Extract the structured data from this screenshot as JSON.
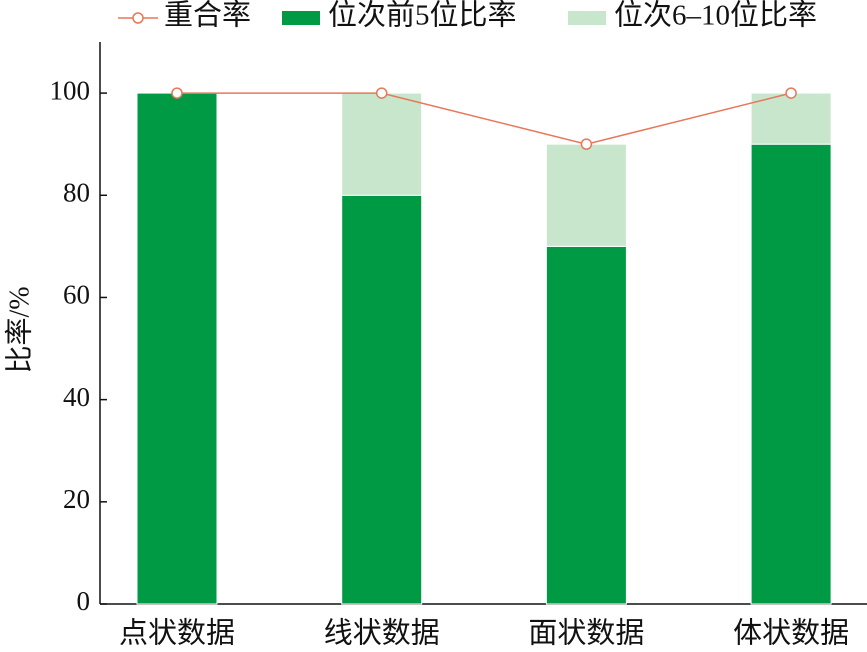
{
  "chart_data": {
    "type": "bar",
    "stacked": true,
    "categories": [
      "点状数据",
      "线状数据",
      "面状数据",
      "体状数据"
    ],
    "y_label": "比率/%",
    "series": [
      {
        "name": "重合率",
        "type": "line",
        "color": "#e8775a",
        "values": [
          100,
          100,
          90,
          100
        ]
      },
      {
        "name": "位次前5位比率",
        "type": "bar",
        "color": "#009a44",
        "values": [
          100,
          80,
          70,
          90
        ]
      },
      {
        "name": "位次6–10位比率",
        "type": "bar",
        "color": "#c8e6cc",
        "values": [
          0,
          20,
          20,
          10
        ]
      }
    ],
    "ylim": [
      0,
      110
    ],
    "yticks": [
      0,
      20,
      40,
      60,
      80,
      100
    ]
  }
}
